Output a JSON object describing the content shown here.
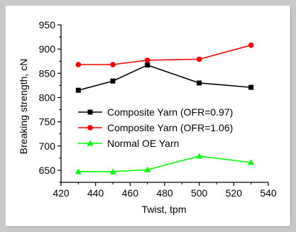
{
  "chart_data": {
    "type": "line",
    "xlabel": "Twist, tpm",
    "ylabel": "Breaking strength, cN",
    "xlim": [
      420,
      540
    ],
    "ylim": [
      625,
      950
    ],
    "xticks": [
      420,
      440,
      460,
      480,
      500,
      520,
      540
    ],
    "yticks": [
      650,
      700,
      750,
      800,
      850,
      900,
      950
    ],
    "x": [
      430,
      450,
      470,
      500,
      530
    ],
    "legend_position": "center-left",
    "grid": false,
    "series": [
      {
        "name": "Composite Yarn (OFR=0.97)",
        "color": "#000000",
        "marker": "square",
        "values": [
          815,
          834,
          867,
          830,
          821
        ]
      },
      {
        "name": "Composite Yarn (OFR=1.06)",
        "color": "#ff0000",
        "marker": "circle",
        "values": [
          868,
          868,
          877,
          879,
          908
        ]
      },
      {
        "name": "Normal OE Yarn",
        "color": "#00ff00",
        "marker": "triangle",
        "values": [
          647,
          647,
          651,
          679,
          666
        ]
      }
    ]
  }
}
